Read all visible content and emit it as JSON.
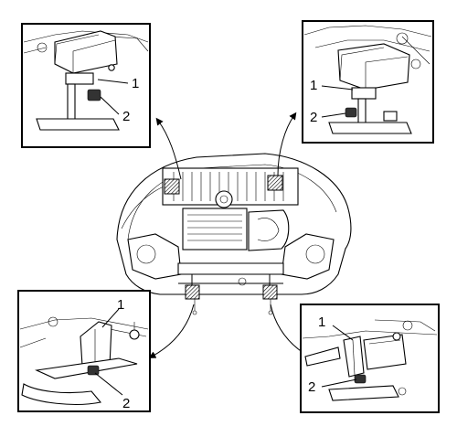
{
  "figure": {
    "description_labels": {
      "top_left": {
        "callout_1": "1",
        "callout_2": "2"
      },
      "top_right": {
        "callout_1": "1",
        "callout_2": "2"
      },
      "bottom_left": {
        "callout_1": "1",
        "callout_2": "2"
      },
      "bottom_right": {
        "callout_1": "1",
        "callout_2": "2"
      }
    }
  }
}
